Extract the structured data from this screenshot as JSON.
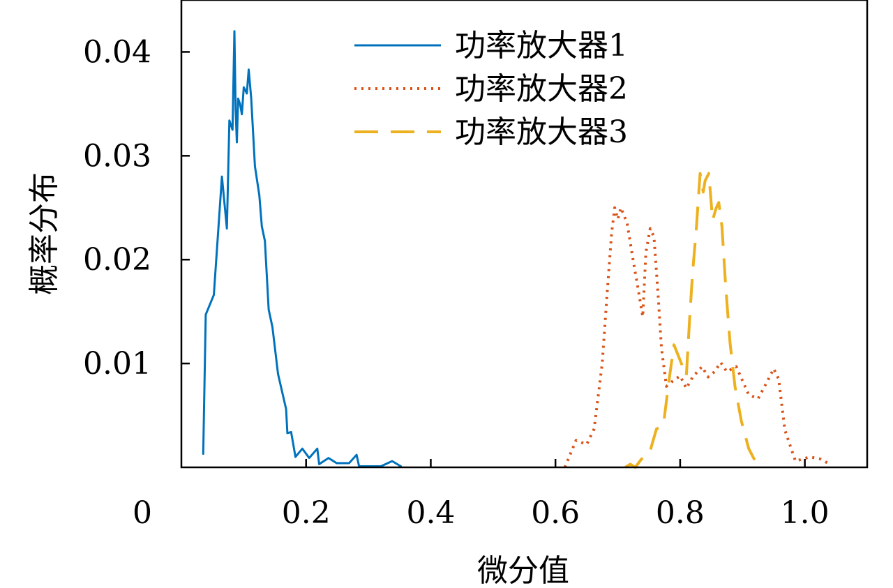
{
  "chart_data": {
    "type": "line",
    "xlabel": "微分值",
    "ylabel": "概率分布",
    "xlim": [
      0,
      1.1
    ],
    "ylim": [
      0,
      0.045
    ],
    "x_ticks": [
      {
        "value": 0.2,
        "label": "0.2"
      },
      {
        "value": 0.4,
        "label": "0.4"
      },
      {
        "value": 0.6,
        "label": "0.6"
      },
      {
        "value": 0.8,
        "label": "0.8"
      },
      {
        "value": 1.0,
        "label": "1.0"
      }
    ],
    "x_origin_label": "0",
    "y_ticks": [
      {
        "value": 0.01,
        "label": "0.01"
      },
      {
        "value": 0.02,
        "label": "0.02"
      },
      {
        "value": 0.03,
        "label": "0.03"
      },
      {
        "value": 0.04,
        "label": "0.04"
      }
    ],
    "legend_position": "top-center",
    "series": [
      {
        "name": "功率放大器1",
        "color": "#0072bd",
        "style": "solid",
        "points": [
          [
            0.035,
            0.0013
          ],
          [
            0.039,
            0.0147
          ],
          [
            0.052,
            0.0166
          ],
          [
            0.065,
            0.028
          ],
          [
            0.073,
            0.023
          ],
          [
            0.077,
            0.0334
          ],
          [
            0.082,
            0.0325
          ],
          [
            0.085,
            0.042
          ],
          [
            0.087,
            0.0345
          ],
          [
            0.089,
            0.0313
          ],
          [
            0.091,
            0.0355
          ],
          [
            0.094,
            0.035
          ],
          [
            0.097,
            0.034
          ],
          [
            0.1,
            0.0366
          ],
          [
            0.105,
            0.036
          ],
          [
            0.108,
            0.0383
          ],
          [
            0.112,
            0.0355
          ],
          [
            0.118,
            0.029
          ],
          [
            0.125,
            0.0262
          ],
          [
            0.129,
            0.0232
          ],
          [
            0.134,
            0.0218
          ],
          [
            0.14,
            0.0152
          ],
          [
            0.146,
            0.0135
          ],
          [
            0.155,
            0.009
          ],
          [
            0.168,
            0.0056
          ],
          [
            0.17,
            0.0033
          ],
          [
            0.176,
            0.0034
          ],
          [
            0.183,
            0.001
          ],
          [
            0.194,
            0.0018
          ],
          [
            0.205,
            0.0009
          ],
          [
            0.218,
            0.0018
          ],
          [
            0.221,
            0.0003
          ],
          [
            0.236,
            0.0009
          ],
          [
            0.249,
            0.0004
          ],
          [
            0.269,
            0.0004
          ],
          [
            0.281,
            0.0012
          ],
          [
            0.285,
            0.0001
          ],
          [
            0.32,
            0.0001
          ],
          [
            0.338,
            0.0006
          ],
          [
            0.352,
            0.0001
          ]
        ]
      },
      {
        "name": "功率放大器2",
        "color": "#d95319",
        "style": "dotted",
        "points": [
          [
            0.615,
            0.0
          ],
          [
            0.633,
            0.0026
          ],
          [
            0.65,
            0.0022
          ],
          [
            0.662,
            0.0037
          ],
          [
            0.675,
            0.01
          ],
          [
            0.683,
            0.0169
          ],
          [
            0.69,
            0.0225
          ],
          [
            0.695,
            0.025
          ],
          [
            0.7,
            0.0239
          ],
          [
            0.705,
            0.025
          ],
          [
            0.715,
            0.0235
          ],
          [
            0.725,
            0.0198
          ],
          [
            0.732,
            0.0174
          ],
          [
            0.74,
            0.0145
          ],
          [
            0.745,
            0.0207
          ],
          [
            0.752,
            0.023
          ],
          [
            0.758,
            0.0222
          ],
          [
            0.765,
            0.0163
          ],
          [
            0.77,
            0.0115
          ],
          [
            0.778,
            0.0078
          ],
          [
            0.79,
            0.0084
          ],
          [
            0.8,
            0.0088
          ],
          [
            0.81,
            0.0076
          ],
          [
            0.82,
            0.0087
          ],
          [
            0.835,
            0.0097
          ],
          [
            0.845,
            0.0087
          ],
          [
            0.855,
            0.0092
          ],
          [
            0.865,
            0.0101
          ],
          [
            0.875,
            0.0092
          ],
          [
            0.89,
            0.0097
          ],
          [
            0.91,
            0.007
          ],
          [
            0.925,
            0.0066
          ],
          [
            0.94,
            0.0083
          ],
          [
            0.95,
            0.0095
          ],
          [
            0.958,
            0.0085
          ],
          [
            0.968,
            0.0036
          ],
          [
            0.985,
            0.0006
          ],
          [
            1.008,
            0.001
          ],
          [
            1.025,
            0.0008
          ],
          [
            1.04,
            0.0003
          ]
        ]
      },
      {
        "name": "功率放大器3",
        "color": "#edb120",
        "style": "dashed",
        "points": [
          [
            0.712,
            0.0
          ],
          [
            0.72,
            0.0003
          ],
          [
            0.728,
            0.0
          ],
          [
            0.738,
            0.0008
          ],
          [
            0.75,
            0.0012
          ],
          [
            0.762,
            0.0037
          ],
          [
            0.773,
            0.004
          ],
          [
            0.782,
            0.0083
          ],
          [
            0.79,
            0.0118
          ],
          [
            0.8,
            0.0103
          ],
          [
            0.81,
            0.0088
          ],
          [
            0.815,
            0.0141
          ],
          [
            0.82,
            0.0188
          ],
          [
            0.826,
            0.023
          ],
          [
            0.832,
            0.0283
          ],
          [
            0.837,
            0.0265
          ],
          [
            0.84,
            0.0276
          ],
          [
            0.846,
            0.0283
          ],
          [
            0.852,
            0.0238
          ],
          [
            0.858,
            0.025
          ],
          [
            0.862,
            0.0255
          ],
          [
            0.867,
            0.0232
          ],
          [
            0.873,
            0.0175
          ],
          [
            0.88,
            0.012
          ],
          [
            0.888,
            0.0078
          ],
          [
            0.898,
            0.0045
          ],
          [
            0.91,
            0.0018
          ],
          [
            0.923,
            0.0003
          ]
        ]
      }
    ]
  }
}
